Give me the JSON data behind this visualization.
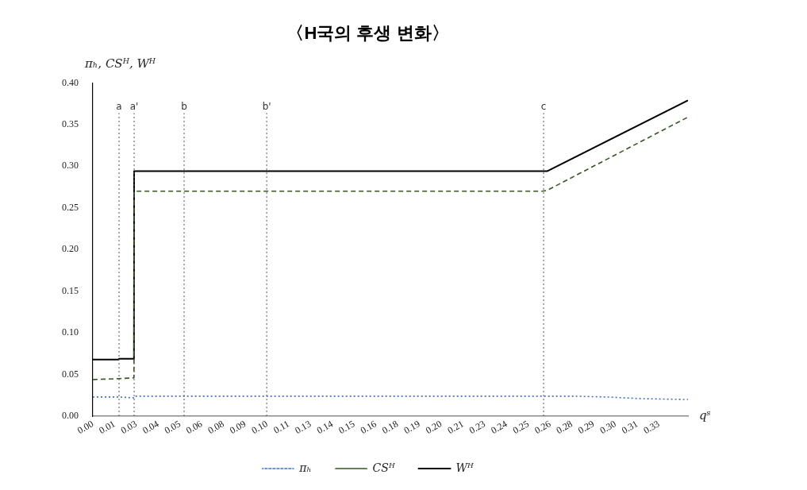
{
  "chart_data": {
    "type": "line",
    "title": "〈H국의 후생 변화〉",
    "xlabel": "qˢ",
    "ylabel": "πₕ, CSᴴ, Wᴴ",
    "xlim": [
      0,
      0.343
    ],
    "ylim": [
      0,
      0.4
    ],
    "xticks": [
      {
        "value": 0,
        "label": "0.00"
      },
      {
        "value": 0.01255,
        "label": "0.01"
      },
      {
        "value": 0.0251,
        "label": "0.03"
      },
      {
        "value": 0.03765,
        "label": "0.04"
      },
      {
        "value": 0.0502,
        "label": "0.05"
      },
      {
        "value": 0.06275,
        "label": "0.06"
      },
      {
        "value": 0.0753,
        "label": "0.08"
      },
      {
        "value": 0.08785,
        "label": "0.09"
      },
      {
        "value": 0.1004,
        "label": "0.10"
      },
      {
        "value": 0.11295,
        "label": "0.11"
      },
      {
        "value": 0.1255,
        "label": "0.13"
      },
      {
        "value": 0.13805,
        "label": "0.14"
      },
      {
        "value": 0.1506,
        "label": "0.15"
      },
      {
        "value": 0.16315,
        "label": "0.16"
      },
      {
        "value": 0.1757,
        "label": "0.18"
      },
      {
        "value": 0.18825,
        "label": "0.19"
      },
      {
        "value": 0.2008,
        "label": "0.20"
      },
      {
        "value": 0.21335,
        "label": "0.21"
      },
      {
        "value": 0.2259,
        "label": "0.23"
      },
      {
        "value": 0.23845,
        "label": "0.24"
      },
      {
        "value": 0.251,
        "label": "0.25"
      },
      {
        "value": 0.26355,
        "label": "0.26"
      },
      {
        "value": 0.2761,
        "label": "0.28"
      },
      {
        "value": 0.28865,
        "label": "0.29"
      },
      {
        "value": 0.3012,
        "label": "0.30"
      },
      {
        "value": 0.31375,
        "label": "0.31"
      },
      {
        "value": 0.3263,
        "label": "0.33"
      }
    ],
    "yticks": [
      {
        "value": 0,
        "label": "0.00"
      },
      {
        "value": 0.05,
        "label": "0.05"
      },
      {
        "value": 0.1,
        "label": "0.10"
      },
      {
        "value": 0.15,
        "label": "0.15"
      },
      {
        "value": 0.2,
        "label": "0.20"
      },
      {
        "value": 0.25,
        "label": "0.25"
      },
      {
        "value": 0.3,
        "label": "0.30"
      },
      {
        "value": 0.35,
        "label": "0.35"
      },
      {
        "value": 0.4,
        "label": "0.40"
      }
    ],
    "grid": false,
    "legend": "bottom",
    "marker": "none",
    "series": [
      {
        "name": "πₕ",
        "color": "#4472c4",
        "line_style": "dotted",
        "x": [
          0,
          0.0148,
          0.0237,
          0.0242,
          0.2767,
          0.2964,
          0.3162,
          0.343
        ],
        "values": [
          0.023,
          0.023,
          0.022,
          0.024,
          0.024,
          0.023,
          0.021,
          0.02
        ]
      },
      {
        "name": "CSᴴ",
        "color": "#375623",
        "line_style": "dashed",
        "x": [
          0,
          0.0148,
          0.0237,
          0.0238,
          0.2589,
          0.2618,
          0.343
        ],
        "values": [
          0.044,
          0.045,
          0.046,
          0.27,
          0.27,
          0.271,
          0.359
        ]
      },
      {
        "name": "Wᴴ",
        "color": "#000000",
        "line_style": "solid",
        "x": [
          0,
          0.0148,
          0.0151,
          0.0237,
          0.0238,
          0.2618,
          0.343
        ],
        "values": [
          0.068,
          0.068,
          0.069,
          0.069,
          0.294,
          0.294,
          0.379
        ]
      }
    ],
    "ref_lines": [
      {
        "axis": "x",
        "value": 0.0151,
        "label": "a",
        "line_style": "dotted"
      },
      {
        "axis": "x",
        "value": 0.0238,
        "label": "a'",
        "line_style": "dotted"
      },
      {
        "axis": "x",
        "value": 0.0526,
        "label": "b",
        "line_style": "dotted"
      },
      {
        "axis": "x",
        "value": 0.1002,
        "label": "b'",
        "line_style": "dotted"
      },
      {
        "axis": "x",
        "value": 0.2598,
        "label": "c",
        "line_style": "dotted"
      }
    ]
  }
}
